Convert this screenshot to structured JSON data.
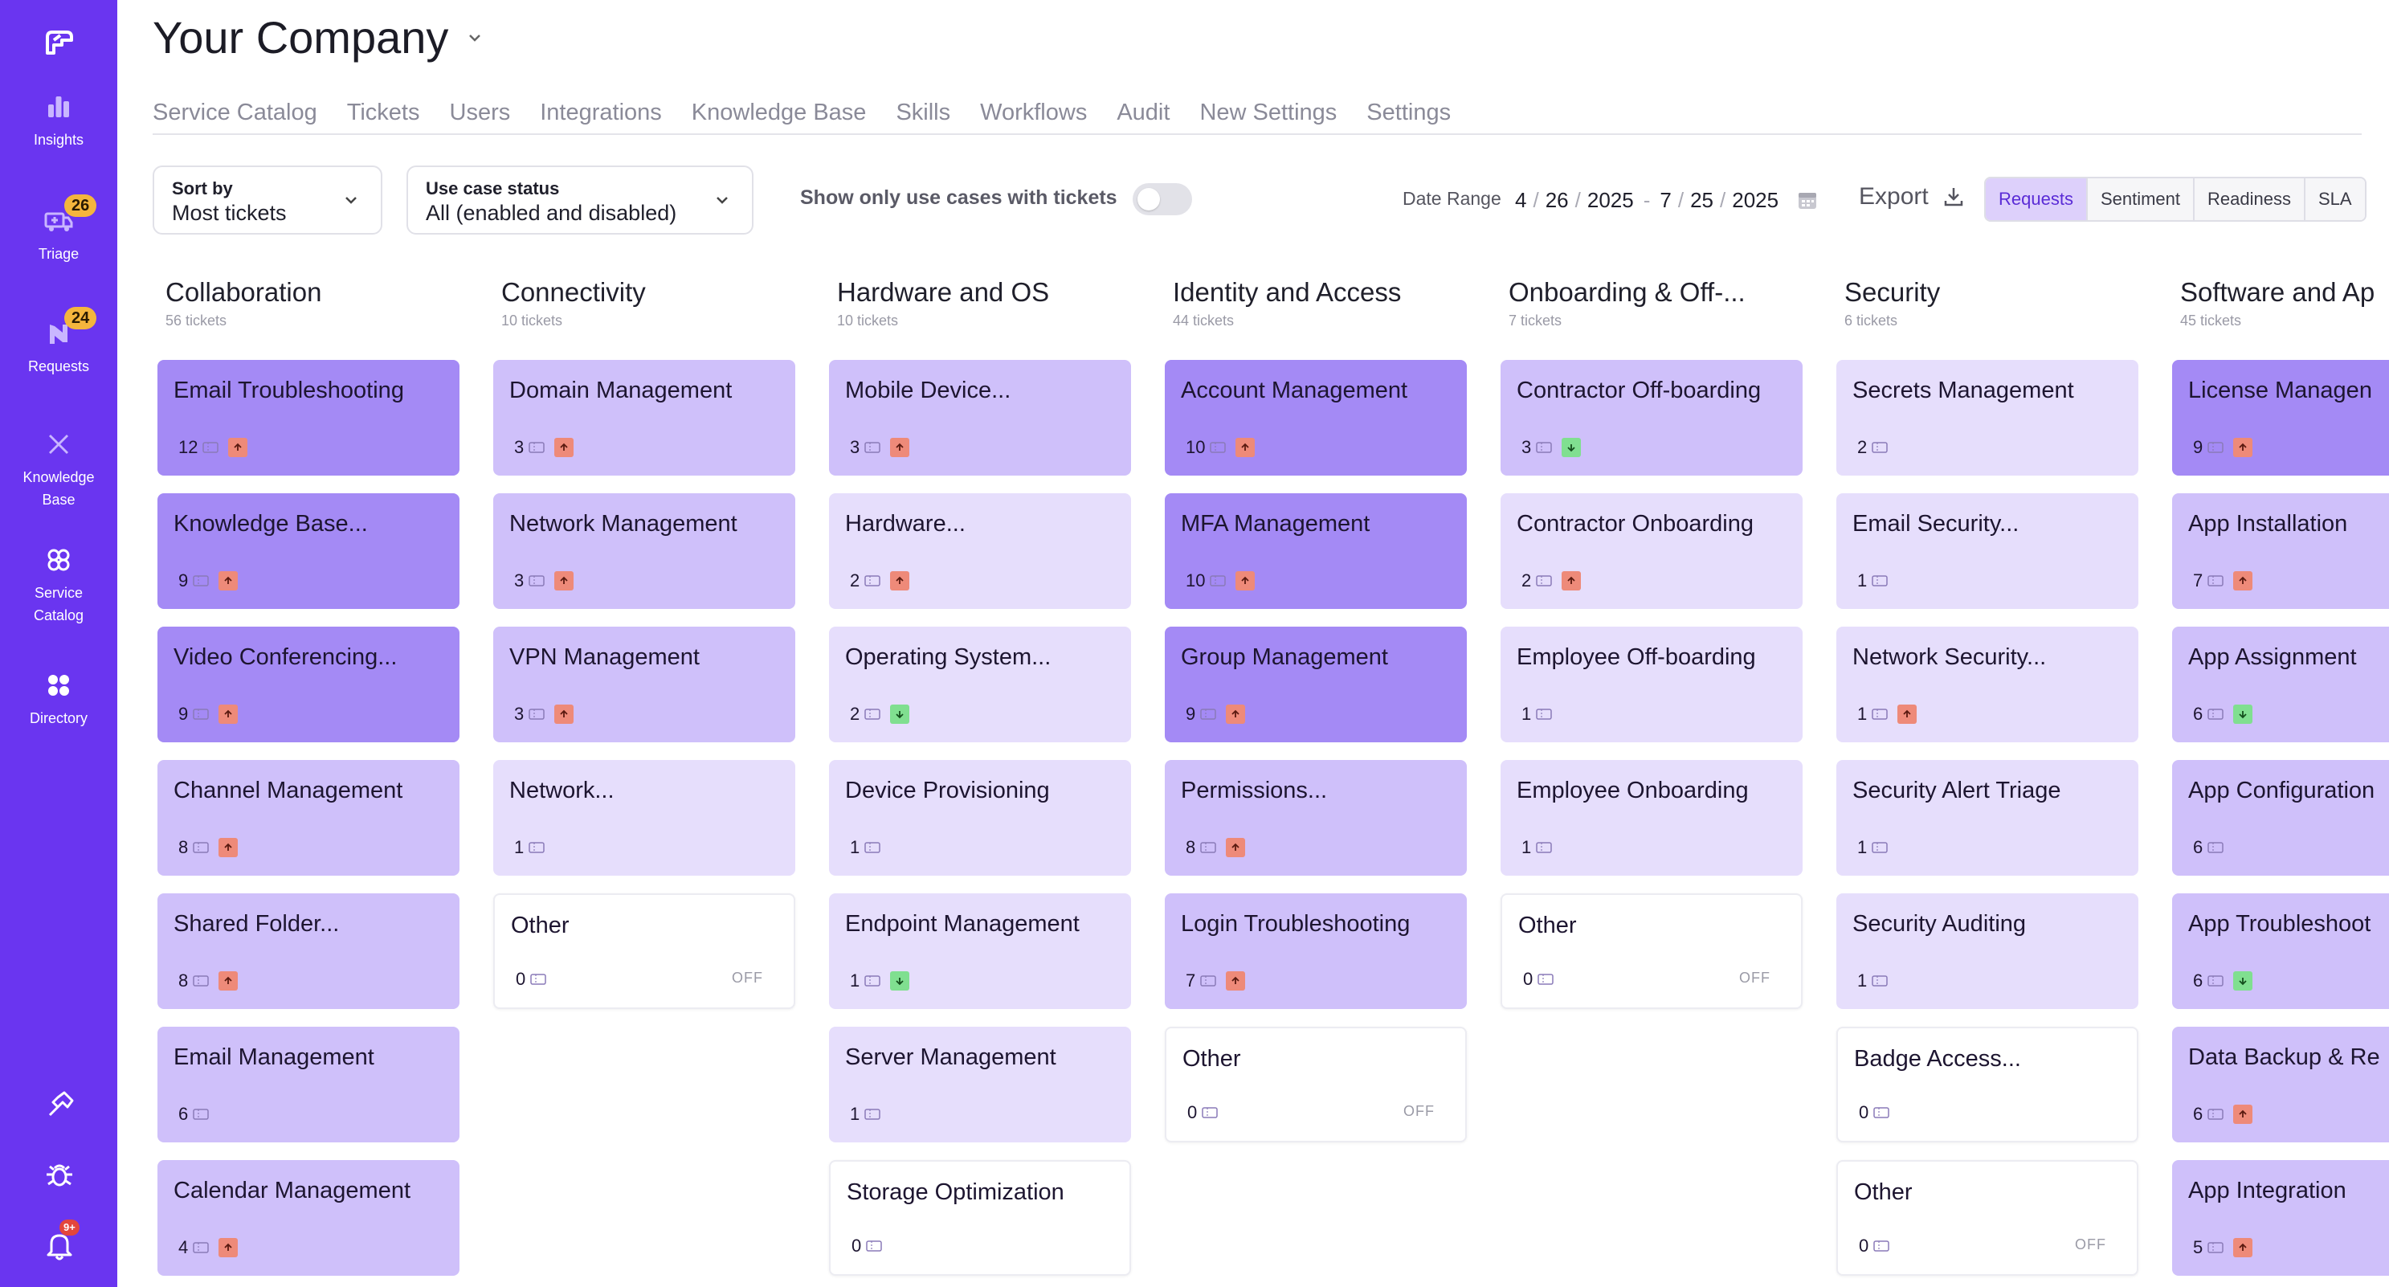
{
  "sidebar": {
    "items": [
      {
        "label": "Insights",
        "icon": "bar-chart-icon"
      },
      {
        "label": "Triage",
        "icon": "truck-icon",
        "badge": "26"
      },
      {
        "label": "Requests",
        "icon": "requests-icon",
        "badge": "24"
      },
      {
        "label": "Knowledge Base",
        "label_line1": "Knowledge",
        "label_line2": "Base",
        "icon": "knowledge-base-icon"
      },
      {
        "label": "Service Catalog",
        "label_line1": "Service",
        "label_line2": "Catalog",
        "icon": "service-catalog-icon"
      },
      {
        "label": "Directory",
        "icon": "directory-icon"
      }
    ],
    "notifications_badge": "9+"
  },
  "header": {
    "company": "Your Company",
    "tabs": [
      "Service Catalog",
      "Tickets",
      "Users",
      "Integrations",
      "Knowledge Base",
      "Skills",
      "Workflows",
      "Audit",
      "New Settings",
      "Settings"
    ]
  },
  "controls": {
    "sort": {
      "label": "Sort by",
      "value": "Most tickets"
    },
    "status": {
      "label": "Use case status",
      "value": "All (enabled and disabled)"
    },
    "toggle_label": "Show only use cases with tickets",
    "toggle_on": false,
    "date_range_label": "Date Range",
    "date_start": {
      "m": "4",
      "d": "26",
      "y": "2025"
    },
    "date_end": {
      "m": "7",
      "d": "25",
      "y": "2025"
    },
    "export_label": "Export",
    "views": [
      "Requests",
      "Sentiment",
      "Readiness",
      "SLA"
    ],
    "active_view": "Requests"
  },
  "columns": [
    {
      "title": "Collaboration",
      "subtitle": "56 tickets",
      "cards": [
        {
          "title": "Email Troubleshooting",
          "count": "12",
          "trend": "up",
          "level": "dark"
        },
        {
          "title": "Knowledge Base...",
          "count": "9",
          "trend": "up",
          "level": "dark"
        },
        {
          "title": "Video Conferencing...",
          "count": "9",
          "trend": "up",
          "level": "dark"
        },
        {
          "title": "Channel Management",
          "count": "8",
          "trend": "up",
          "level": "mid"
        },
        {
          "title": "Shared Folder...",
          "count": "8",
          "trend": "up",
          "level": "mid"
        },
        {
          "title": "Email Management",
          "count": "6",
          "trend": "none",
          "level": "mid"
        },
        {
          "title": "Calendar Management",
          "count": "4",
          "trend": "up",
          "level": "mid"
        }
      ]
    },
    {
      "title": "Connectivity",
      "subtitle": "10 tickets",
      "cards": [
        {
          "title": "Domain Management",
          "count": "3",
          "trend": "up",
          "level": "mid"
        },
        {
          "title": "Network Management",
          "count": "3",
          "trend": "up",
          "level": "mid"
        },
        {
          "title": "VPN Management",
          "count": "3",
          "trend": "up",
          "level": "mid"
        },
        {
          "title": "Network...",
          "count": "1",
          "trend": "none",
          "level": "light"
        },
        {
          "title": "Other",
          "count": "0",
          "trend": "none",
          "level": "white",
          "status": "OFF"
        }
      ]
    },
    {
      "title": "Hardware and OS",
      "subtitle": "10 tickets",
      "cards": [
        {
          "title": "Mobile Device...",
          "count": "3",
          "trend": "up",
          "level": "mid"
        },
        {
          "title": "Hardware...",
          "count": "2",
          "trend": "up",
          "level": "light"
        },
        {
          "title": "Operating System...",
          "count": "2",
          "trend": "down",
          "level": "light"
        },
        {
          "title": "Device Provisioning",
          "count": "1",
          "trend": "none",
          "level": "light"
        },
        {
          "title": "Endpoint Management",
          "count": "1",
          "trend": "down",
          "level": "light"
        },
        {
          "title": "Server Management",
          "count": "1",
          "trend": "none",
          "level": "light"
        },
        {
          "title": "Storage Optimization",
          "count": "0",
          "trend": "none",
          "level": "white"
        }
      ]
    },
    {
      "title": "Identity and Access",
      "subtitle": "44 tickets",
      "cards": [
        {
          "title": "Account Management",
          "count": "10",
          "trend": "up",
          "level": "dark"
        },
        {
          "title": "MFA Management",
          "count": "10",
          "trend": "up",
          "level": "dark"
        },
        {
          "title": "Group Management",
          "count": "9",
          "trend": "up",
          "level": "dark"
        },
        {
          "title": "Permissions...",
          "count": "8",
          "trend": "up",
          "level": "mid"
        },
        {
          "title": "Login Troubleshooting",
          "count": "7",
          "trend": "up",
          "level": "mid"
        },
        {
          "title": "Other",
          "count": "0",
          "trend": "none",
          "level": "white",
          "status": "OFF"
        }
      ]
    },
    {
      "title": "Onboarding & Off-...",
      "subtitle": "7 tickets",
      "cards": [
        {
          "title": "Contractor Off-boarding",
          "count": "3",
          "trend": "down",
          "level": "mid"
        },
        {
          "title": "Contractor Onboarding",
          "count": "2",
          "trend": "up",
          "level": "light"
        },
        {
          "title": "Employee Off-boarding",
          "count": "1",
          "trend": "none",
          "level": "light"
        },
        {
          "title": "Employee Onboarding",
          "count": "1",
          "trend": "none",
          "level": "light"
        },
        {
          "title": "Other",
          "count": "0",
          "trend": "none",
          "level": "white",
          "status": "OFF"
        }
      ]
    },
    {
      "title": "Security",
      "subtitle": "6 tickets",
      "cards": [
        {
          "title": "Secrets Management",
          "count": "2",
          "trend": "none",
          "level": "light"
        },
        {
          "title": "Email Security...",
          "count": "1",
          "trend": "none",
          "level": "light"
        },
        {
          "title": "Network Security...",
          "count": "1",
          "trend": "up",
          "level": "light"
        },
        {
          "title": "Security Alert Triage",
          "count": "1",
          "trend": "none",
          "level": "light"
        },
        {
          "title": "Security Auditing",
          "count": "1",
          "trend": "none",
          "level": "light"
        },
        {
          "title": "Badge Access...",
          "count": "0",
          "trend": "none",
          "level": "white"
        },
        {
          "title": "Other",
          "count": "0",
          "trend": "none",
          "level": "white",
          "status": "OFF"
        }
      ]
    },
    {
      "title": "Software and Ap",
      "subtitle": "45 tickets",
      "cards": [
        {
          "title": "License Managen",
          "count": "9",
          "trend": "up",
          "level": "dark"
        },
        {
          "title": "App Installation",
          "count": "7",
          "trend": "up",
          "level": "mid"
        },
        {
          "title": "App Assignment",
          "count": "6",
          "trend": "down",
          "level": "mid"
        },
        {
          "title": "App Configuration",
          "count": "6",
          "trend": "none",
          "level": "mid"
        },
        {
          "title": "App Troubleshoot",
          "count": "6",
          "trend": "down",
          "level": "mid"
        },
        {
          "title": "Data Backup & Re",
          "count": "6",
          "trend": "up",
          "level": "mid"
        },
        {
          "title": "App Integration",
          "count": "5",
          "trend": "up",
          "level": "mid"
        }
      ]
    }
  ],
  "colors": {
    "sidebar": "#6a35f0",
    "dark": "#a48af5",
    "mid": "#cfc0fa",
    "light": "#e6defc",
    "up": "#ee8a79",
    "down": "#80df90"
  }
}
